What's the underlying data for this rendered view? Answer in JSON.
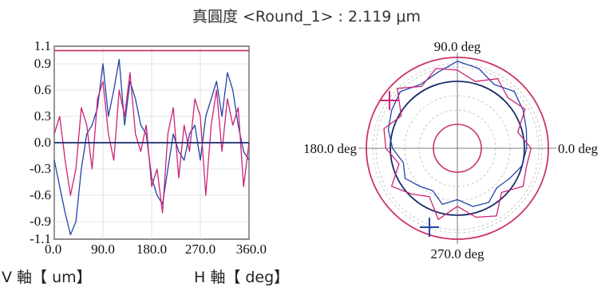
{
  "title": "真圓度 <Round_1> : 2.119 μm",
  "axis_captions": {
    "v": "V 軸【 um】",
    "h": "H 軸【 deg】"
  },
  "colors": {
    "upper_limit": "#cc3366",
    "baseline": "#1a2a6a",
    "series_blue": "#2244aa",
    "series_magenta": "#cc2277",
    "grid": "#cccccc"
  },
  "chart_data": [
    {
      "type": "line",
      "xlabel": "H 軸【 deg】",
      "ylabel": "V 軸【 um】",
      "xlim": [
        0,
        360
      ],
      "ylim": [
        -1.1,
        1.1
      ],
      "x_ticks": [
        "0.0",
        "90.0",
        "180.0",
        "270.0",
        "360.0"
      ],
      "y_ticks": [
        "1.1",
        "0.9",
        "0.6",
        "0.3",
        "0.0",
        "-0.3",
        "-0.6",
        "-0.9",
        "-1.1"
      ],
      "reference_lines": [
        {
          "y": 1.05,
          "color": "#cc3366"
        },
        {
          "y": 0.0,
          "color": "#1a2a6a"
        }
      ],
      "series": [
        {
          "color": "#2244aa",
          "x": [
            0,
            10,
            20,
            30,
            40,
            50,
            60,
            70,
            80,
            90,
            100,
            110,
            120,
            130,
            140,
            150,
            160,
            170,
            180,
            190,
            200,
            210,
            220,
            230,
            240,
            250,
            260,
            270,
            280,
            290,
            300,
            310,
            320,
            330,
            340,
            350,
            360
          ],
          "y": [
            -0.2,
            -0.5,
            -0.8,
            -1.05,
            -0.9,
            -0.3,
            0.1,
            0.2,
            0.4,
            0.9,
            0.3,
            0.6,
            0.95,
            0.2,
            0.7,
            0.5,
            0.2,
            0.1,
            -0.4,
            -0.6,
            -0.7,
            -0.3,
            0.1,
            -0.1,
            -0.2,
            0.1,
            0.2,
            -0.2,
            0.3,
            0.5,
            0.7,
            0.3,
            0.8,
            0.6,
            0.2,
            -0.1,
            -0.2
          ]
        },
        {
          "color": "#cc2277",
          "x": [
            0,
            10,
            20,
            30,
            40,
            50,
            60,
            70,
            80,
            90,
            100,
            110,
            120,
            130,
            140,
            150,
            160,
            170,
            180,
            190,
            200,
            210,
            220,
            230,
            240,
            250,
            260,
            270,
            280,
            290,
            300,
            310,
            320,
            330,
            340,
            350,
            360
          ],
          "y": [
            0.1,
            0.3,
            -0.2,
            -0.6,
            -0.3,
            0.4,
            0.2,
            -0.3,
            0.5,
            0.7,
            0.1,
            -0.2,
            0.6,
            0.3,
            0.8,
            0.1,
            -0.1,
            0.2,
            -0.5,
            -0.3,
            -0.8,
            0.1,
            0.4,
            -0.4,
            0.2,
            -0.1,
            0.5,
            0.3,
            -0.6,
            0.2,
            0.6,
            -0.1,
            0.5,
            0.2,
            0.4,
            -0.5,
            0.0
          ]
        }
      ]
    },
    {
      "type": "polar",
      "angle_labels": [
        "90.0 deg",
        "180.0 deg",
        "0.0 deg",
        "270.0 deg"
      ],
      "series": [
        {
          "color": "#2244aa",
          "angle_deg": [
            0,
            15,
            30,
            45,
            60,
            75,
            90,
            105,
            120,
            135,
            150,
            165,
            180,
            195,
            210,
            225,
            240,
            255,
            270,
            285,
            300,
            315,
            330,
            345
          ],
          "deviation": [
            0.1,
            0.2,
            0.4,
            0.6,
            0.3,
            0.7,
            0.9,
            0.5,
            0.3,
            0.6,
            0.4,
            0.2,
            -0.1,
            -0.5,
            -0.3,
            -0.6,
            -0.8,
            -0.4,
            -0.7,
            -0.3,
            -0.2,
            -0.5,
            -0.3,
            0.0
          ]
        },
        {
          "color": "#cc2277",
          "angle_deg": [
            0,
            15,
            30,
            45,
            60,
            75,
            90,
            105,
            120,
            135,
            150,
            165,
            180,
            195,
            210,
            225,
            240,
            255,
            270,
            285,
            300,
            315,
            330,
            345
          ],
          "deviation": [
            0.3,
            -0.2,
            0.5,
            0.2,
            0.6,
            0.1,
            0.5,
            0.7,
            0.2,
            0.8,
            -0.1,
            0.4,
            0.2,
            -0.3,
            0.4,
            -0.1,
            -0.5,
            0.3,
            -0.4,
            0.2,
            0.5,
            -0.2,
            0.4,
            0.2
          ]
        }
      ]
    }
  ]
}
